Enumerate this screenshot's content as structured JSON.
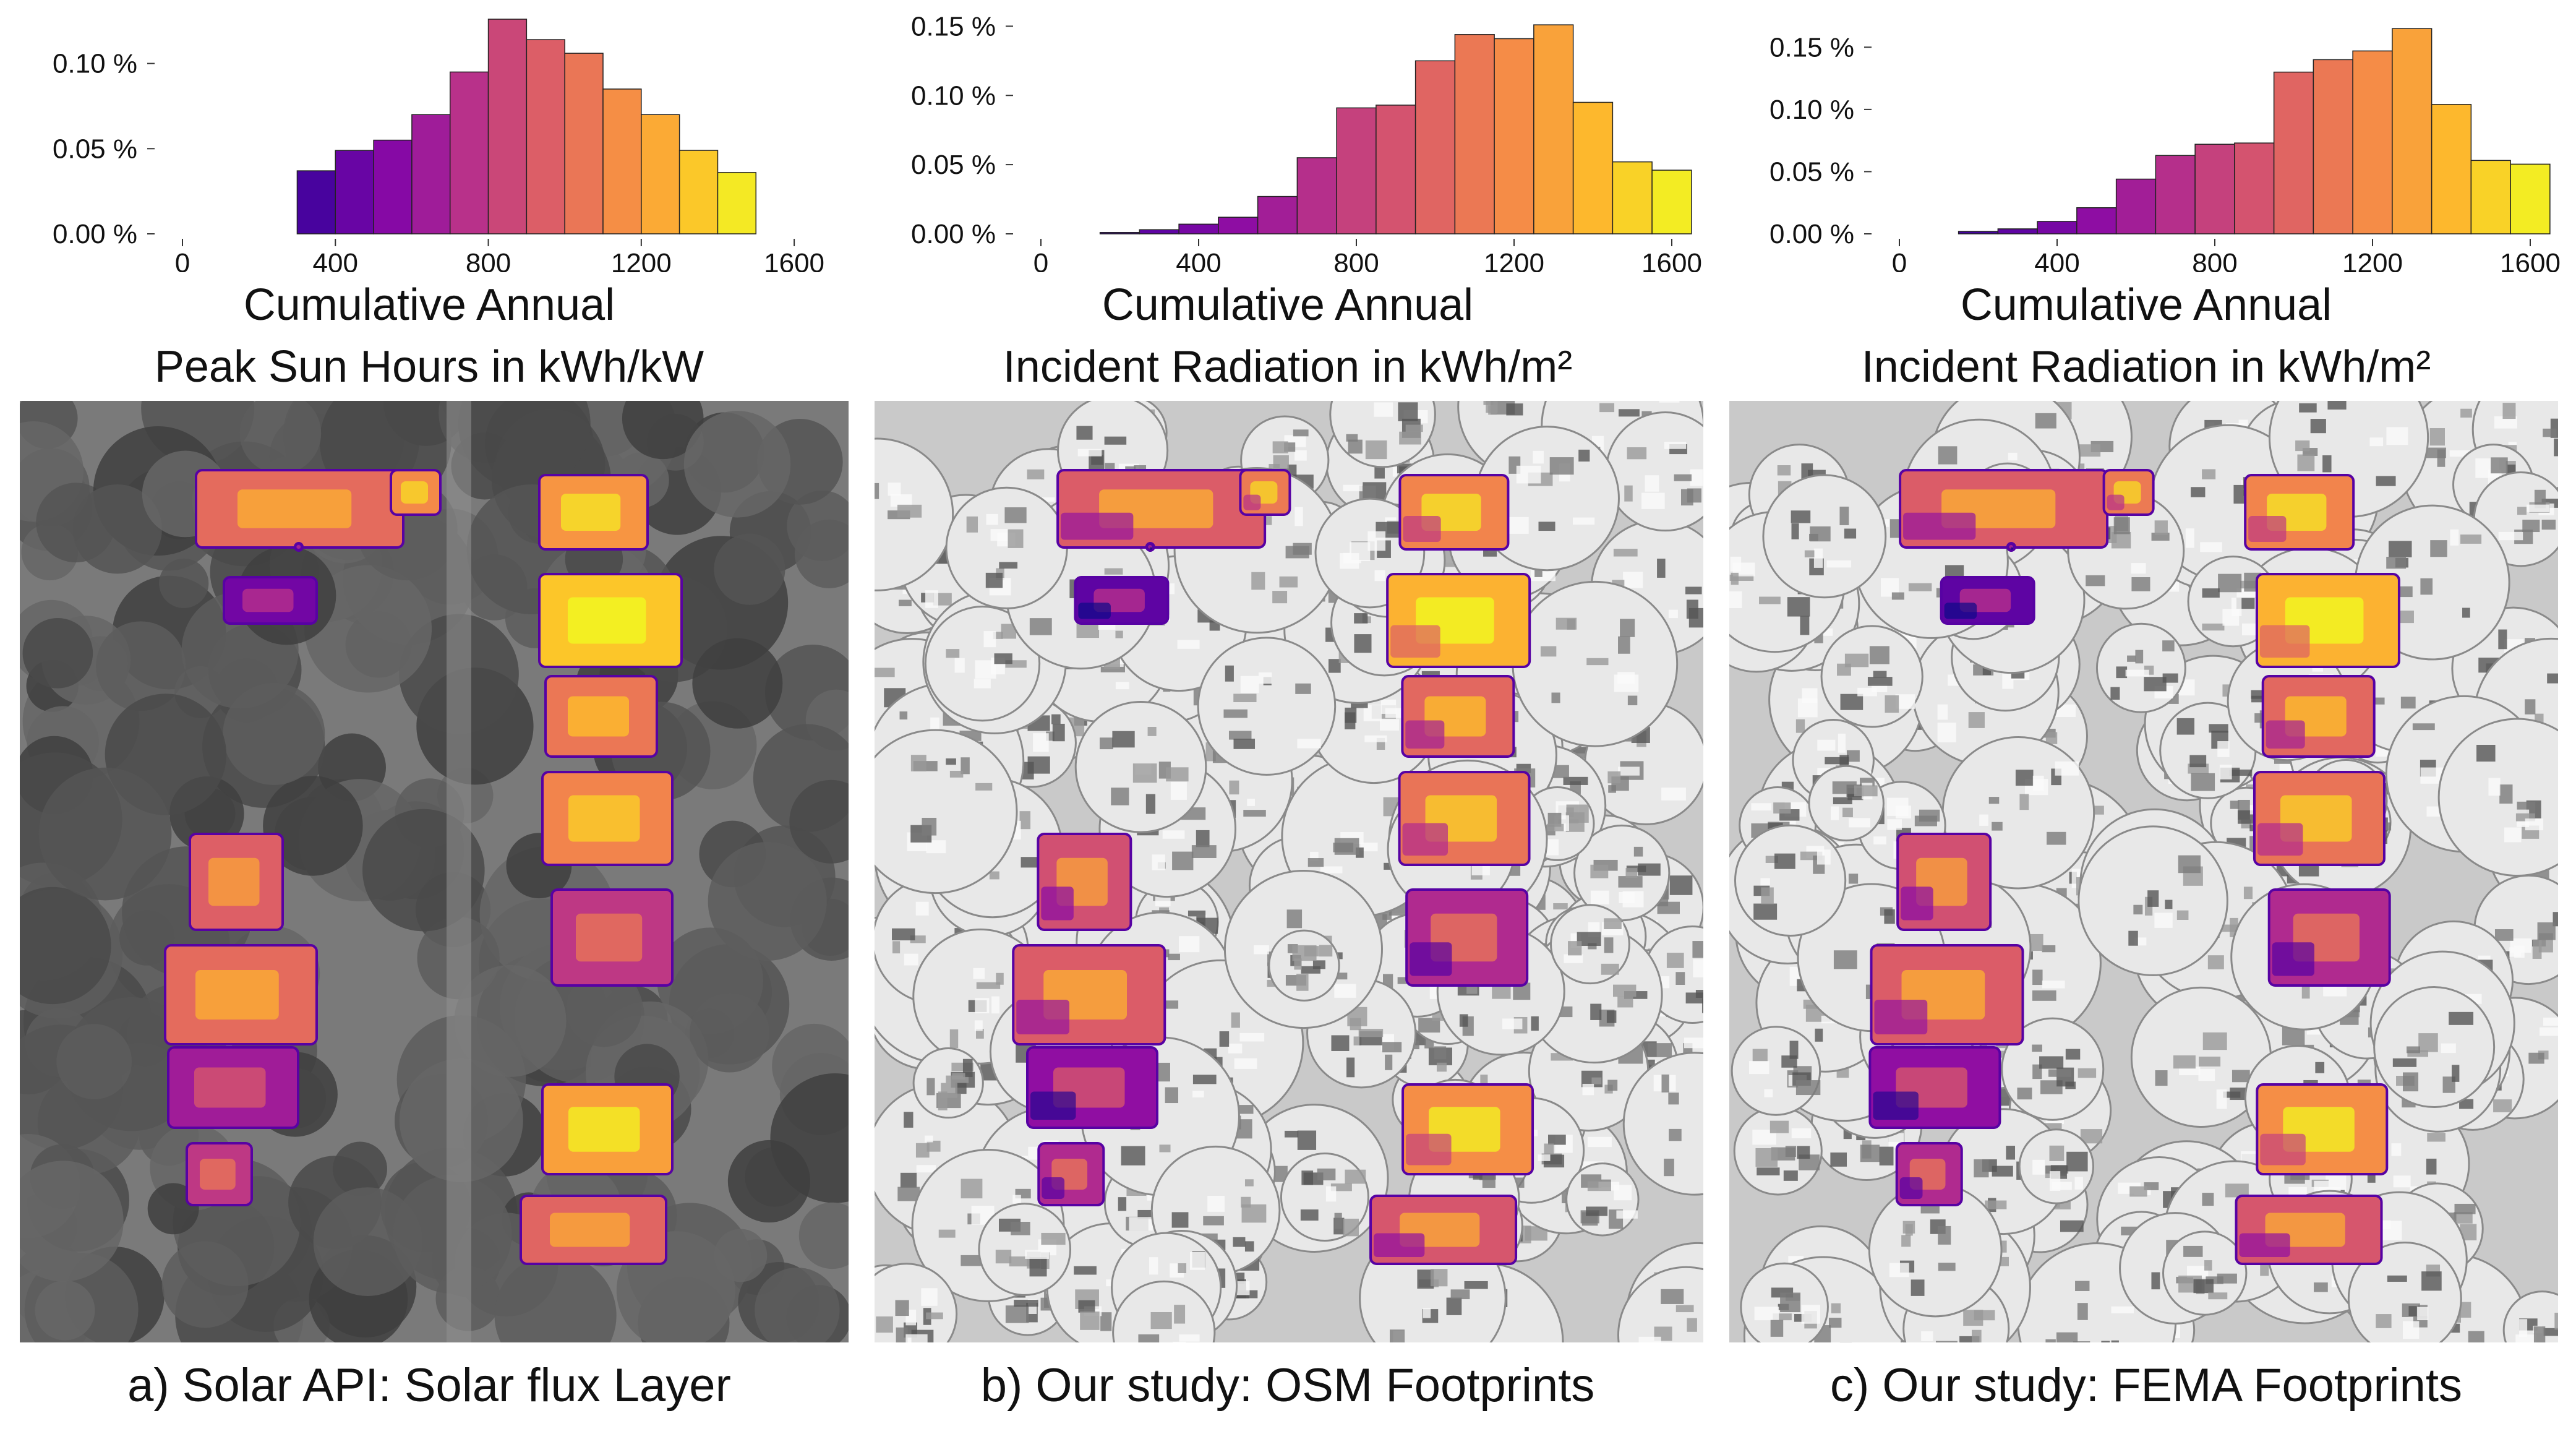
{
  "colors": {
    "sat_bg": "#6f6f6f",
    "tree": "#4a4a4a",
    "model_bg": "#bdbdbd",
    "bar_edge": "#222222"
  },
  "panels": [
    {
      "caption": "a) Solar API: Solar flux Layer",
      "xtitle": [
        "Cumulative Annual",
        "Peak Sun Hours in kWh/kW"
      ],
      "map_style": "satellite"
    },
    {
      "caption": "b) Our study: OSM Footprints",
      "xtitle": [
        "Cumulative Annual",
        "Incident Radiation in kWh/m²"
      ],
      "map_style": "model"
    },
    {
      "caption": "c) Our study: FEMA Footprints",
      "xtitle": [
        "Cumulative Annual",
        "Incident Radiation in kWh/m²"
      ],
      "map_style": "model"
    }
  ],
  "chart_data": [
    {
      "type": "bar",
      "title": "",
      "xlabel": "Cumulative Annual Peak Sun Hours in kWh/kW",
      "xlim": [
        0,
        1650
      ],
      "ylim": [
        0,
        0.0013
      ],
      "xticks": [
        "0",
        "400",
        "800",
        "1200",
        "1600"
      ],
      "yticks": [
        "0.00 %",
        "0.05 %",
        "0.10 %"
      ],
      "bin_start": 300,
      "bin_width": 100,
      "values": [
        0.00037,
        0.00049,
        0.00055,
        0.0007,
        0.00095,
        0.00126,
        0.00114,
        0.00106,
        0.00085,
        0.0007,
        0.00049,
        0.00036
      ]
    },
    {
      "type": "bar",
      "title": "",
      "xlabel": "Cumulative Annual Incident Radiation in kWh/m²",
      "xlim": [
        0,
        1600
      ],
      "ylim": [
        0,
        0.0016
      ],
      "xticks": [
        "0",
        "400",
        "800",
        "1200",
        "1600"
      ],
      "yticks": [
        "0.00 %",
        "0.05 %",
        "0.10 %",
        "0.15 %"
      ],
      "bin_start": 150,
      "bin_width": 100,
      "values": [
        1e-05,
        3e-05,
        7e-05,
        0.00012,
        0.00027,
        0.00055,
        0.00091,
        0.00093,
        0.00125,
        0.00144,
        0.00141,
        0.00151,
        0.00095,
        0.00052,
        0.00046
      ]
    },
    {
      "type": "bar",
      "title": "",
      "xlabel": "Cumulative Annual Incident Radiation in kWh/m²",
      "xlim": [
        0,
        1600
      ],
      "ylim": [
        0,
        0.00178
      ],
      "xticks": [
        "0",
        "400",
        "800",
        "1200",
        "1600"
      ],
      "yticks": [
        "0.00 %",
        "0.05 %",
        "0.10 %",
        "0.15 %"
      ],
      "bin_start": 150,
      "bin_width": 100,
      "values": [
        2e-05,
        4e-05,
        0.0001,
        0.00021,
        0.00044,
        0.00063,
        0.00072,
        0.00073,
        0.0013,
        0.0014,
        0.00147,
        0.00165,
        0.00104,
        0.00059,
        0.00056
      ]
    }
  ]
}
